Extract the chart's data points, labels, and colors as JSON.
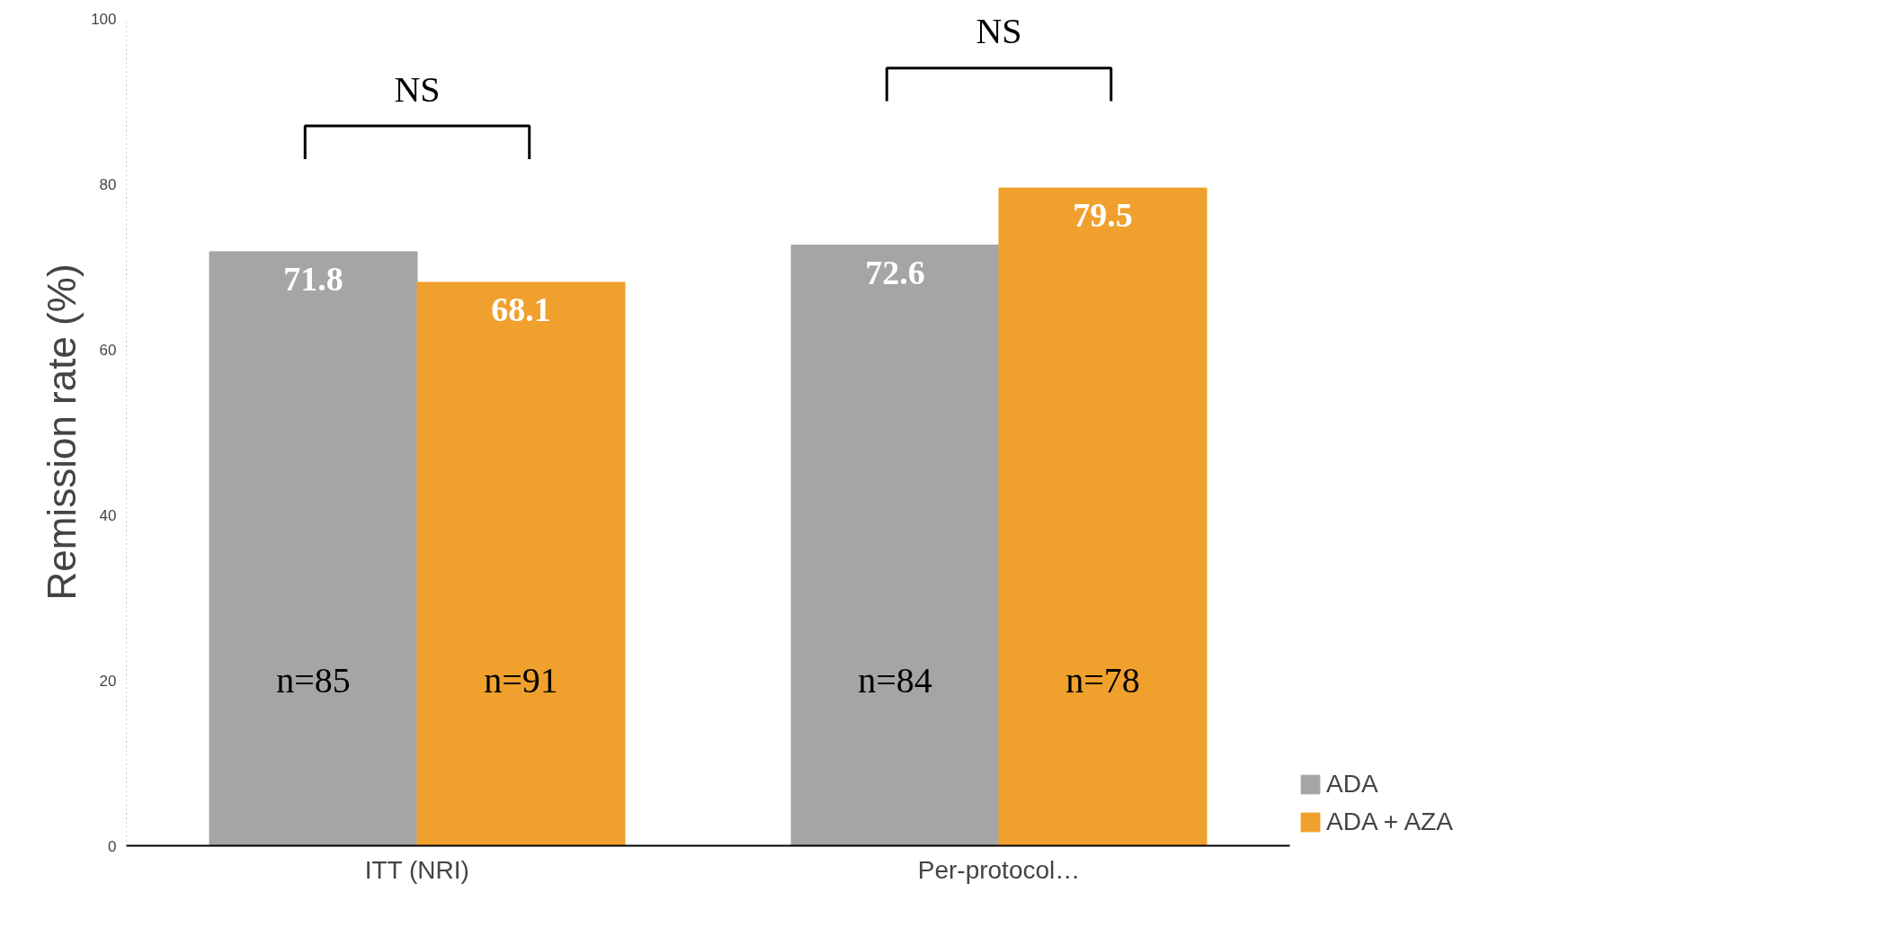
{
  "chart_data": {
    "type": "bar",
    "ylabel": "Remission rate (%)",
    "categories": [
      "ITT (NRI)",
      "Per-protocol…"
    ],
    "series": [
      {
        "name": "ADA",
        "color": "#a5a5a5",
        "values": [
          71.8,
          72.6
        ]
      },
      {
        "name": "ADA + AZA",
        "color": "#f0a02c",
        "values": [
          68.1,
          79.5
        ]
      }
    ],
    "ylim": [
      0,
      100
    ],
    "yticks": [
      0,
      20,
      40,
      60,
      80,
      100
    ],
    "grid": false,
    "legend": "bottom right",
    "data_labels": true,
    "annotations": [
      "NS",
      "NS",
      "n=85",
      "n=91",
      "n=84",
      "n=78"
    ]
  }
}
